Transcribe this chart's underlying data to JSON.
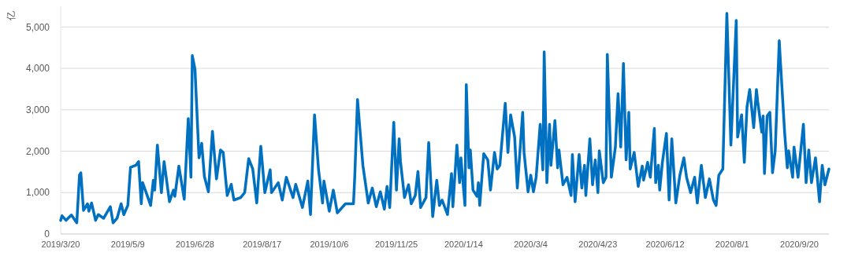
{
  "chart_data": {
    "type": "line",
    "ylabel": "亿",
    "color": "#0070c0",
    "grid": "y",
    "line_style": "solid",
    "marker": "none",
    "xlim": [
      "2019-03-20",
      "2020-10-12"
    ],
    "ylim": [
      0,
      5500
    ],
    "yticks": [
      {
        "value": 0,
        "label": "0"
      },
      {
        "value": 1000,
        "label": "1,000"
      },
      {
        "value": 2000,
        "label": "2,000"
      },
      {
        "value": 3000,
        "label": "3,000"
      },
      {
        "value": 4000,
        "label": "4,000"
      },
      {
        "value": 5000,
        "label": "5,000"
      }
    ],
    "xticks": [
      {
        "value": "2019-03-20",
        "label": "2019/3/20"
      },
      {
        "value": "2019-05-09",
        "label": "2019/5/9"
      },
      {
        "value": "2019-06-28",
        "label": "2019/6/28"
      },
      {
        "value": "2019-08-17",
        "label": "2019/8/17"
      },
      {
        "value": "2019-10-06",
        "label": "2019/10/6"
      },
      {
        "value": "2019-11-25",
        "label": "2019/11/25"
      },
      {
        "value": "2020-01-14",
        "label": "2020/1/14"
      },
      {
        "value": "2020-03-04",
        "label": "2020/3/4"
      },
      {
        "value": "2020-04-23",
        "label": "2020/4/23"
      },
      {
        "value": "2020-06-12",
        "label": "2020/6/12"
      },
      {
        "value": "2020-08-01",
        "label": "2020/8/1"
      },
      {
        "value": "2020-09-20",
        "label": "2020/9/20"
      }
    ],
    "x": [
      "2019-03-20",
      "2019-03-21",
      "2019-03-24",
      "2019-03-28",
      "2019-04-01",
      "2019-04-03",
      "2019-04-04",
      "2019-04-06",
      "2019-04-09",
      "2019-04-10",
      "2019-04-12",
      "2019-04-15",
      "2019-04-17",
      "2019-04-21",
      "2019-04-26",
      "2019-04-28",
      "2019-05-01",
      "2019-05-04",
      "2019-05-06",
      "2019-05-09",
      "2019-05-11",
      "2019-05-15",
      "2019-05-17",
      "2019-05-19",
      "2019-05-20",
      "2019-05-23",
      "2019-05-26",
      "2019-05-28",
      "2019-05-29",
      "2019-05-31",
      "2019-06-03",
      "2019-06-05",
      "2019-06-09",
      "2019-06-12",
      "2019-06-13",
      "2019-06-16",
      "2019-06-20",
      "2019-06-23",
      "2019-06-25",
      "2019-06-26",
      "2019-06-28",
      "2019-07-01",
      "2019-07-03",
      "2019-07-05",
      "2019-07-08",
      "2019-07-11",
      "2019-07-14",
      "2019-07-17",
      "2019-07-19",
      "2019-07-22",
      "2019-07-25",
      "2019-07-27",
      "2019-08-01",
      "2019-08-04",
      "2019-08-07",
      "2019-08-10",
      "2019-08-13",
      "2019-08-16",
      "2019-08-19",
      "2019-08-23",
      "2019-08-24",
      "2019-08-29",
      "2019-09-01",
      "2019-09-04",
      "2019-09-09",
      "2019-09-11",
      "2019-09-16",
      "2019-09-20",
      "2019-09-22",
      "2019-09-25",
      "2019-09-28",
      "2019-10-01",
      "2019-10-02",
      "2019-10-06",
      "2019-10-09",
      "2019-10-12",
      "2019-10-18",
      "2019-10-24",
      "2019-10-25",
      "2019-10-27",
      "2019-10-31",
      "2019-11-04",
      "2019-11-07",
      "2019-11-10",
      "2019-11-13",
      "2019-11-16",
      "2019-11-18",
      "2019-11-20",
      "2019-11-23",
      "2019-11-25",
      "2019-11-27",
      "2019-11-28",
      "2019-12-01",
      "2019-12-04",
      "2019-12-06",
      "2019-12-09",
      "2019-12-11",
      "2019-12-13",
      "2019-12-17",
      "2019-12-19",
      "2019-12-22",
      "2019-12-25",
      "2019-12-27",
      "2019-12-29",
      "2020-01-02",
      "2020-01-05",
      "2020-01-06",
      "2020-01-09",
      "2020-01-11",
      "2020-01-12",
      "2020-01-15",
      "2020-01-16",
      "2020-01-18",
      "2020-01-19",
      "2020-01-21",
      "2020-01-24",
      "2020-01-25",
      "2020-01-26",
      "2020-01-29",
      "2020-02-01",
      "2020-02-03",
      "2020-02-06",
      "2020-02-08",
      "2020-02-10",
      "2020-02-14",
      "2020-02-16",
      "2020-02-18",
      "2020-02-21",
      "2020-02-23",
      "2020-02-27",
      "2020-02-28",
      "2020-03-02",
      "2020-03-04",
      "2020-03-06",
      "2020-03-08",
      "2020-03-11",
      "2020-03-13",
      "2020-03-14",
      "2020-03-16",
      "2020-03-18",
      "2020-03-19",
      "2020-03-22",
      "2020-03-24",
      "2020-03-25",
      "2020-03-28",
      "2020-03-31",
      "2020-04-03",
      "2020-04-04",
      "2020-04-06",
      "2020-04-09",
      "2020-04-11",
      "2020-04-13",
      "2020-04-14",
      "2020-04-17",
      "2020-04-19",
      "2020-04-21",
      "2020-04-23",
      "2020-04-24",
      "2020-04-27",
      "2020-04-29",
      "2020-04-30",
      "2020-05-03",
      "2020-05-06",
      "2020-05-08",
      "2020-05-10",
      "2020-05-12",
      "2020-05-14",
      "2020-05-16",
      "2020-05-17",
      "2020-05-20",
      "2020-05-23",
      "2020-05-26",
      "2020-05-27",
      "2020-05-30",
      "2020-06-01",
      "2020-06-04",
      "2020-06-05",
      "2020-06-07",
      "2020-06-08",
      "2020-06-10",
      "2020-06-13",
      "2020-06-15",
      "2020-06-17",
      "2020-06-20",
      "2020-06-23",
      "2020-06-26",
      "2020-06-28",
      "2020-07-01",
      "2020-07-04",
      "2020-07-06",
      "2020-07-09",
      "2020-07-12",
      "2020-07-15",
      "2020-07-18",
      "2020-07-20",
      "2020-07-22",
      "2020-07-25",
      "2020-07-28",
      "2020-07-31",
      "2020-08-04",
      "2020-08-05",
      "2020-08-08",
      "2020-08-10",
      "2020-08-12",
      "2020-08-14",
      "2020-08-17",
      "2020-08-19",
      "2020-08-20",
      "2020-08-23",
      "2020-08-24",
      "2020-08-25",
      "2020-08-27",
      "2020-08-29",
      "2020-08-31",
      "2020-09-02",
      "2020-09-05",
      "2020-09-06",
      "2020-09-09",
      "2020-09-11",
      "2020-09-12",
      "2020-09-15",
      "2020-09-16",
      "2020-09-19",
      "2020-09-23",
      "2020-09-25",
      "2020-09-27",
      "2020-09-29",
      "2020-10-02",
      "2020-10-05",
      "2020-10-07",
      "2020-10-09",
      "2020-10-12"
    ],
    "values": [
      330,
      440,
      330,
      460,
      270,
      1420,
      1480,
      570,
      730,
      550,
      750,
      330,
      470,
      380,
      660,
      270,
      380,
      730,
      470,
      690,
      1610,
      1660,
      1750,
      730,
      1240,
      970,
      690,
      1300,
      1060,
      2150,
      1000,
      1750,
      780,
      1060,
      910,
      1640,
      840,
      2790,
      1370,
      4310,
      3980,
      1840,
      2190,
      1390,
      1020,
      2480,
      1330,
      2030,
      1970,
      930,
      1200,
      820,
      880,
      1000,
      1820,
      1570,
      750,
      2120,
      1000,
      1550,
      1000,
      1240,
      820,
      1370,
      880,
      1200,
      640,
      1280,
      470,
      2880,
      1550,
      750,
      1280,
      550,
      1060,
      510,
      730,
      730,
      1420,
      3250,
      1660,
      750,
      1110,
      660,
      1020,
      600,
      1150,
      640,
      2700,
      1060,
      2300,
      1750,
      880,
      1190,
      730,
      930,
      1510,
      640,
      880,
      2210,
      420,
      1300,
      690,
      820,
      470,
      1460,
      660,
      2150,
      1240,
      1840,
      690,
      3610,
      1600,
      2030,
      1060,
      910,
      1240,
      690,
      1940,
      1790,
      1060,
      1970,
      1570,
      1660,
      3160,
      1970,
      2880,
      2340,
      1110,
      2940,
      1970,
      1020,
      1420,
      1020,
      1370,
      2650,
      1550,
      4400,
      1240,
      2650,
      1660,
      2740,
      1600,
      2030,
      1190,
      1370,
      930,
      1920,
      780,
      1920,
      1110,
      1660,
      930,
      2300,
      1190,
      1790,
      1000,
      2010,
      1240,
      1370,
      4340,
      1370,
      2100,
      3390,
      2100,
      4120,
      1790,
      2940,
      1570,
      1970,
      1150,
      1640,
      1300,
      1730,
      1370,
      2550,
      1240,
      1660,
      1060,
      1730,
      2430,
      820,
      2300,
      750,
      1420,
      1840,
      1370,
      1000,
      1370,
      750,
      1660,
      880,
      1330,
      820,
      690,
      1420,
      1570,
      5330,
      2150,
      5160,
      2340,
      2880,
      1730,
      3070,
      3490,
      2570,
      3490,
      3190,
      2460,
      2850,
      1460,
      2850,
      2940,
      1480,
      2010,
      4670,
      4100,
      2460,
      1600,
      2010,
      1370,
      2100,
      1370,
      2650,
      1240,
      2030,
      1240,
      1840,
      780,
      1660,
      1190,
      1570
    ]
  }
}
